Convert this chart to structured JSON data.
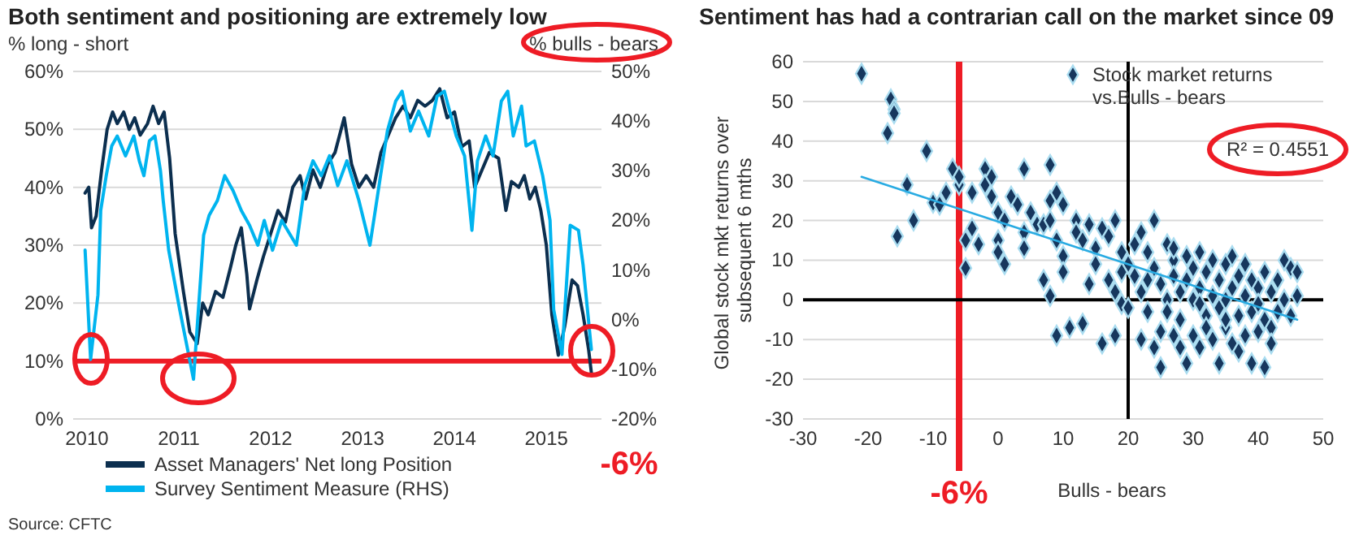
{
  "chart_data": [
    {
      "type": "line",
      "title": "Both sentiment and positioning are extremely low",
      "ylabel": "% long - short",
      "y2label": "% bulls - bears",
      "xlim": [
        2009.85,
        2015.6
      ],
      "xticks": [
        2010,
        2011,
        2012,
        2013,
        2014,
        2015
      ],
      "ylim": [
        0,
        60
      ],
      "yticks": [
        {
          "value": 0,
          "label": "0%"
        },
        {
          "value": 10,
          "label": "10%"
        },
        {
          "value": 20,
          "label": "20%"
        },
        {
          "value": 30,
          "label": "30%"
        },
        {
          "value": 40,
          "label": "40%"
        },
        {
          "value": 50,
          "label": "50%"
        },
        {
          "value": 60,
          "label": "60%"
        }
      ],
      "y2lim": [
        -20,
        50
      ],
      "y2ticks": [
        {
          "value": -20,
          "label": "-20%"
        },
        {
          "value": -10,
          "label": "-10%"
        },
        {
          "value": 0,
          "label": "0%"
        },
        {
          "value": 10,
          "label": "10%"
        },
        {
          "value": 20,
          "label": "20%"
        },
        {
          "value": 30,
          "label": "30%"
        },
        {
          "value": 40,
          "label": "40%"
        },
        {
          "value": 50,
          "label": "50%"
        }
      ],
      "grid": "y",
      "legend": "bottom",
      "ref_lines": [
        {
          "axis": "y",
          "value": 10,
          "color": "#ee1c25"
        }
      ],
      "series": [
        {
          "name": "Asset Managers' Net long Position",
          "color": "#0c2f4f",
          "x": [
            2009.98,
            2010.02,
            2010.05,
            2010.1,
            2010.16,
            2010.22,
            2010.28,
            2010.33,
            2010.4,
            2010.46,
            2010.52,
            2010.58,
            2010.66,
            2010.72,
            2010.78,
            2010.84,
            2010.9,
            2010.96,
            2011.05,
            2011.12,
            2011.2,
            2011.26,
            2011.32,
            2011.4,
            2011.48,
            2011.56,
            2011.62,
            2011.68,
            2011.74,
            2011.77,
            2011.85,
            2011.92,
            2012.0,
            2012.08,
            2012.16,
            2012.24,
            2012.32,
            2012.38,
            2012.46,
            2012.54,
            2012.62,
            2012.7,
            2012.8,
            2012.88,
            2012.96,
            2013.04,
            2013.12,
            2013.2,
            2013.28,
            2013.36,
            2013.44,
            2013.52,
            2013.6,
            2013.68,
            2013.76,
            2013.84,
            2013.92,
            2014.0,
            2014.08,
            2014.16,
            2014.22,
            2014.3,
            2014.38,
            2014.48,
            2014.56,
            2014.62,
            2014.7,
            2014.76,
            2014.82,
            2014.88,
            2014.94,
            2015.0,
            2015.06,
            2015.13,
            2015.2,
            2015.28,
            2015.34,
            2015.4,
            2015.46,
            2015.49
          ],
          "values": [
            39,
            40,
            33,
            35,
            43,
            50,
            53,
            51,
            53,
            50,
            52,
            49,
            51,
            54,
            51,
            53,
            45,
            32,
            22,
            15,
            13,
            20,
            18,
            22,
            21,
            26,
            30,
            33,
            25,
            19,
            24,
            28,
            32,
            36,
            34,
            40,
            42,
            38,
            43,
            40,
            44,
            46,
            52,
            44,
            40,
            42,
            40,
            46,
            49,
            52,
            54,
            52,
            55,
            54,
            55,
            57,
            52,
            53,
            47,
            48,
            40,
            43,
            46,
            45,
            36,
            41,
            40,
            42,
            38,
            40,
            36,
            30,
            18,
            11,
            16,
            24,
            23,
            18,
            12,
            8
          ]
        },
        {
          "name": "Survey  Sentiment Measure  (RHS)",
          "color": "#00b4ef",
          "axis": "y2",
          "x": [
            2009.98,
            2010.04,
            2010.12,
            2010.15,
            2010.21,
            2010.27,
            2010.33,
            2010.42,
            2010.51,
            2010.57,
            2010.62,
            2010.68,
            2010.74,
            2010.8,
            2010.83,
            2010.89,
            2011.01,
            2011.16,
            2011.27,
            2011.33,
            2011.42,
            2011.5,
            2011.59,
            2011.68,
            2011.77,
            2011.86,
            2011.93,
            2012.02,
            2012.12,
            2012.28,
            2012.37,
            2012.46,
            2012.55,
            2012.64,
            2012.73,
            2012.83,
            2012.96,
            2013.08,
            2013.13,
            2013.22,
            2013.27,
            2013.36,
            2013.43,
            2013.52,
            2013.61,
            2013.72,
            2013.81,
            2013.89,
            2014.02,
            2014.11,
            2014.19,
            2014.25,
            2014.34,
            2014.42,
            2014.51,
            2014.58,
            2014.64,
            2014.73,
            2014.78,
            2014.87,
            2014.96,
            2015.04,
            2015.08,
            2015.17,
            2015.26,
            2015.35,
            2015.4,
            2015.49
          ],
          "values": [
            14,
            -8,
            5,
            22,
            29,
            35,
            37,
            33,
            37,
            32,
            29,
            36,
            37,
            30,
            24,
            14,
            2,
            -12,
            17,
            21,
            24,
            29,
            26,
            22,
            19,
            15,
            20,
            14,
            20,
            15,
            27,
            32,
            29,
            33,
            27,
            32,
            24,
            15,
            21,
            32,
            38,
            44,
            46,
            38,
            42,
            37,
            45,
            46,
            37,
            33,
            18,
            32,
            37,
            33,
            44,
            46,
            37,
            43,
            35,
            36,
            29,
            20,
            2,
            -7,
            19,
            18,
            11,
            -6
          ]
        }
      ],
      "annotations": [
        "-6%",
        "Source: CFTC"
      ]
    },
    {
      "type": "scatter",
      "title": "Sentiment has had a contrarian call on the market since 09",
      "xlabel": "Bulls - bears",
      "ylabel": "Global stock mkt returns over subsequent 6 mths",
      "xlim": [
        -30,
        50
      ],
      "xticks": [
        -30,
        -20,
        -10,
        0,
        10,
        20,
        30,
        40,
        50
      ],
      "ylim": [
        -30,
        60
      ],
      "yticks": [
        -30,
        -20,
        -10,
        0,
        10,
        20,
        30,
        40,
        50,
        60
      ],
      "grid": "y",
      "legend": "top",
      "series": [
        {
          "name": "Stock market returns vs.Bulls - bears",
          "color": "#17375e",
          "marker": "diamond",
          "x": [
            -21,
            -17,
            -16.5,
            -16,
            -16,
            -15.5,
            -14,
            -13,
            -11,
            -10,
            -9,
            -8,
            -7,
            -6,
            -6,
            -5,
            -5,
            -4,
            -4,
            -3,
            -2,
            -2,
            -1,
            -1,
            0,
            0,
            0,
            1,
            2,
            1,
            3,
            4,
            4,
            4,
            5,
            6,
            7,
            7,
            8,
            8,
            8,
            8,
            9,
            9,
            9,
            10,
            10,
            10,
            11,
            12,
            12,
            13,
            13,
            14,
            14,
            15,
            15,
            16,
            16,
            17,
            17,
            18,
            18,
            18,
            19,
            19,
            20,
            20,
            21,
            21,
            22,
            22,
            22,
            23,
            23,
            24,
            24,
            24,
            25,
            25,
            25,
            26,
            26,
            26,
            27,
            27,
            27,
            28,
            28,
            29,
            29,
            29,
            30,
            30,
            30,
            31,
            31,
            31,
            32,
            32,
            33,
            33,
            33,
            34,
            34,
            34,
            35,
            35,
            35,
            36,
            36,
            36,
            37,
            37,
            38,
            38,
            38,
            39,
            39,
            39,
            40,
            40,
            40,
            41,
            41,
            41,
            42,
            42,
            43,
            43,
            44,
            44,
            45,
            45,
            46,
            46,
            37,
            32,
            28,
            23,
            19,
            27,
            31,
            42,
            35
          ],
          "values": [
            57,
            42,
            50.5,
            48,
            47,
            16,
            29,
            20,
            37.5,
            24.5,
            24,
            27,
            33,
            29,
            31,
            15,
            8,
            18,
            27,
            14,
            33,
            29,
            31,
            26,
            22,
            15,
            12,
            9,
            26,
            20,
            24,
            33,
            17,
            13,
            22,
            19,
            19,
            5,
            34,
            25,
            20,
            1,
            15,
            27,
            -9,
            24,
            11,
            7,
            -7,
            20,
            17,
            15,
            -6,
            19,
            4,
            13,
            9,
            18,
            -11,
            16,
            5,
            20,
            -9,
            2,
            12,
            -1,
            9,
            -2,
            14,
            6,
            17,
            -10,
            2,
            12,
            -3,
            20,
            -12,
            8,
            -17,
            -8,
            4,
            14,
            0,
            -3,
            -9,
            10,
            6,
            2,
            -5,
            -16,
            11,
            5,
            -9,
            0,
            8,
            -12,
            3,
            12,
            -4,
            7,
            -10,
            10,
            1,
            -16,
            5,
            -2,
            -7,
            9,
            0,
            -11,
            3,
            11,
            -4,
            6,
            -9,
            1,
            9,
            -16,
            -3,
            5,
            -8,
            3,
            -1,
            -17,
            7,
            -5,
            -7,
            2,
            5,
            -3,
            10,
            0,
            8,
            -4,
            7,
            1,
            -13,
            -7,
            -12,
            5,
            7,
            13,
            -1,
            -11,
            -5
          ]
        },
        {
          "type": "line",
          "color": "#29abe2",
          "x": [
            -21,
            46
          ],
          "values": [
            31,
            -5
          ]
        }
      ],
      "ref_lines": [
        {
          "axis": "x",
          "value": 20,
          "color": "#000000"
        },
        {
          "axis": "x",
          "value": -6,
          "label": "-6%",
          "color": "#ee1c25"
        }
      ],
      "annotations": [
        "R² = 0.4551"
      ]
    }
  ]
}
